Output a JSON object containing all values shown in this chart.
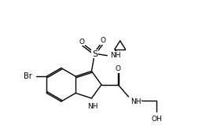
{
  "bg": "#ffffff",
  "lc": "#000000",
  "lw": 1.0,
  "fs": 7.0,
  "figsize": [
    2.62,
    1.73
  ],
  "dpi": 100,
  "xlim": [
    -1.0,
    9.0
  ],
  "ylim": [
    -1.5,
    6.5
  ]
}
